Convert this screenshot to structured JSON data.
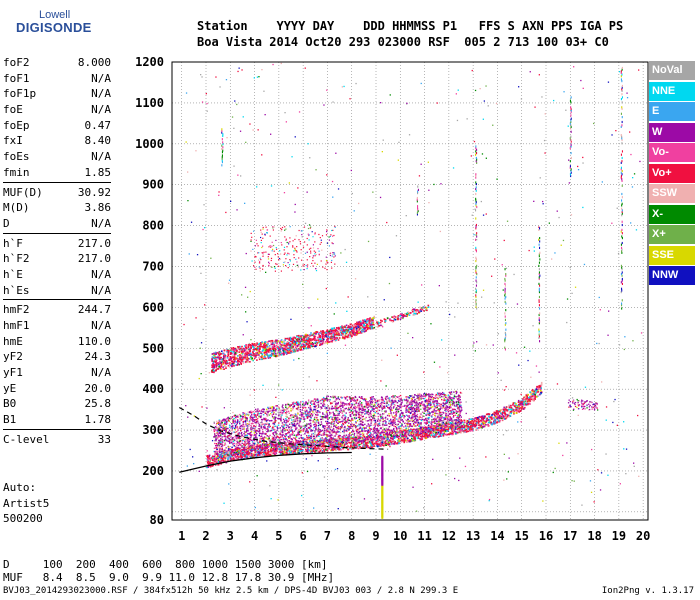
{
  "logo": {
    "line1": "Lowell",
    "line2": "DIGISONDE"
  },
  "header": {
    "line1": "Station    YYYY DAY    DDD HHMMSS P1   FFS S AXN PPS IGA PS",
    "line2": "Boa Vista 2014 Oct20 293 023000 RSF  005 2 713 100 03+ C0"
  },
  "params": [
    [
      {
        "k": "foF2",
        "v": "8.000"
      },
      {
        "k": "foF1",
        "v": "N/A"
      },
      {
        "k": "foF1p",
        "v": "N/A"
      },
      {
        "k": "foE",
        "v": "N/A"
      },
      {
        "k": "foEp",
        "v": "0.47"
      },
      {
        "k": "fxI",
        "v": "8.40"
      },
      {
        "k": "foEs",
        "v": "N/A"
      },
      {
        "k": "fmin",
        "v": "1.85"
      }
    ],
    [
      {
        "k": "MUF(D)",
        "v": "30.92"
      },
      {
        "k": "M(D)",
        "v": "3.86"
      },
      {
        "k": "D",
        "v": "N/A"
      }
    ],
    [
      {
        "k": "h`F",
        "v": "217.0"
      },
      {
        "k": "h`F2",
        "v": "217.0"
      },
      {
        "k": "h`E",
        "v": "N/A"
      },
      {
        "k": "h`Es",
        "v": "N/A"
      }
    ],
    [
      {
        "k": "hmF2",
        "v": "244.7"
      },
      {
        "k": "hmF1",
        "v": "N/A"
      },
      {
        "k": "hmE",
        "v": "110.0"
      },
      {
        "k": "yF2",
        "v": "24.3"
      },
      {
        "k": "yF1",
        "v": "N/A"
      },
      {
        "k": "yE",
        "v": "20.0"
      },
      {
        "k": "B0",
        "v": "25.8"
      },
      {
        "k": "B1",
        "v": "1.78"
      }
    ],
    [
      {
        "k": "C-level",
        "v": "33"
      }
    ]
  ],
  "auto": {
    "line1": "Auto:",
    "line2": "Artist5",
    "line3": "500200"
  },
  "conversion": {
    "d_row": "D     100  200  400  600  800 1000 1500 3000 [km]",
    "muf_row": "MUF   8.4  8.5  9.0  9.9 11.0 12.8 17.8 30.9 [MHz]"
  },
  "footer": "BVJ03_2014293023000.RSF / 384fx512h 50 kHz 2.5 km / DPS-4D BVJ03 003 / 2.8 N 299.3 E",
  "version": "Ion2Png v. 1.3.17",
  "legend": [
    {
      "label": "NoVal",
      "color": "#a6a6a6"
    },
    {
      "label": "NNE",
      "color": "#00d8f0"
    },
    {
      "label": "E",
      "color": "#3aa6f0"
    },
    {
      "label": "W",
      "color": "#9c0aa6"
    },
    {
      "label": "Vo-",
      "color": "#f040a0"
    },
    {
      "label": "Vo+",
      "color": "#f01040"
    },
    {
      "label": "SSW",
      "color": "#f0b0b0"
    },
    {
      "label": "X-",
      "color": "#008a00"
    },
    {
      "label": "X+",
      "color": "#6fb04a"
    },
    {
      "label": "SSE",
      "color": "#d8d800"
    },
    {
      "label": "NNW",
      "color": "#1010c0"
    }
  ],
  "chart_data": {
    "type": "scatter",
    "xlabel": "",
    "ylabel": "",
    "xlim": [
      0.6,
      20.2
    ],
    "ylim": [
      80,
      1200
    ],
    "x_ticks": [
      1,
      2,
      3,
      4,
      5,
      6,
      7,
      8,
      9,
      10,
      11,
      12,
      13,
      14,
      15,
      16,
      17,
      18,
      19,
      20
    ],
    "y_ticks": [
      80,
      100,
      200,
      300,
      400,
      500,
      600,
      700,
      800,
      900,
      1000,
      1100,
      1200
    ],
    "y_tick_labels": [
      "80",
      "",
      "200",
      "300",
      "400",
      "500",
      "600",
      "700",
      "800",
      "900",
      "1000",
      "1100",
      "1200"
    ],
    "grid": true,
    "o_trace_first_hop": [
      [
        2.0,
        225
      ],
      [
        3.0,
        240
      ],
      [
        4.0,
        250
      ],
      [
        5.0,
        255
      ],
      [
        6.0,
        260
      ],
      [
        7.0,
        265
      ],
      [
        8.0,
        270
      ],
      [
        9.0,
        275
      ],
      [
        10.0,
        285
      ],
      [
        11.0,
        295
      ],
      [
        12.0,
        305
      ],
      [
        13.0,
        315
      ],
      [
        14.0,
        335
      ],
      [
        15.0,
        365
      ],
      [
        15.8,
        405
      ]
    ],
    "o_trace_second_hop": [
      [
        2.2,
        455
      ],
      [
        3.0,
        470
      ],
      [
        4.0,
        485
      ],
      [
        5.0,
        495
      ],
      [
        6.0,
        510
      ],
      [
        7.0,
        525
      ],
      [
        8.0,
        540
      ],
      [
        8.9,
        560
      ]
    ],
    "spread_region": {
      "x_range": [
        2.3,
        12.5
      ],
      "y_range": [
        280,
        400
      ]
    },
    "solid_profile": [
      [
        0.9,
        197
      ],
      [
        2.0,
        212
      ],
      [
        3.0,
        224
      ],
      [
        4.0,
        232
      ],
      [
        5.0,
        238
      ],
      [
        6.0,
        242
      ],
      [
        7.0,
        244
      ],
      [
        8.0,
        245
      ]
    ],
    "dashed_profile": [
      [
        0.9,
        355
      ],
      [
        1.5,
        335
      ],
      [
        2.0,
        315
      ],
      [
        2.6,
        298
      ],
      [
        3.5,
        283
      ],
      [
        4.5,
        272
      ],
      [
        5.5,
        266
      ],
      [
        6.5,
        262
      ],
      [
        7.5,
        258
      ],
      [
        8.5,
        255
      ],
      [
        9.5,
        253
      ]
    ]
  }
}
